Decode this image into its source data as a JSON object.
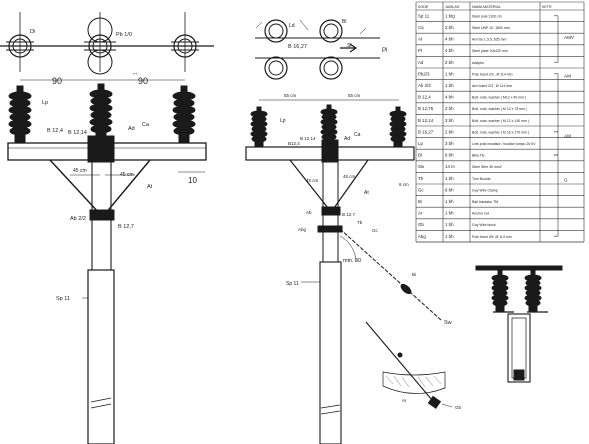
{
  "left_view": {
    "labels": {
      "di": "Di",
      "pb": "Pb 1/0",
      "dim_left": "90",
      "dim_right": "90",
      "dash": "--",
      "lp": "Lp",
      "b124": "B 12,4",
      "b1214": "B 12,14",
      "ad": "Ad",
      "ca": "Ca",
      "dim45a": "45 cm",
      "dim45b": "45 cm",
      "at": "At",
      "dim10": "10",
      "ab": "Ab 2/2",
      "b127": "B 12,7",
      "sp": "Sp 11"
    }
  },
  "middle_view": {
    "labels": {
      "ld": "Ld",
      "bl": "Bl",
      "b1627": "B 16,27",
      "sl": "Sl",
      "pl": "Pl",
      "dim55a": "55 cm",
      "dim55b": "55 cm",
      "lp": "Lp",
      "b124": "B12,4",
      "b1214": "B 12,14",
      "ad": "Ad",
      "ca": "Ca",
      "dim45a": "45 cm",
      "dim45b": "45 cm",
      "dim6": "6 cm",
      "at": "At",
      "ab": "Ab",
      "b127": "B 12,7",
      "tb": "Tb",
      "abg": "Abg",
      "gc": "Gc",
      "min30": "min. 30",
      "sp": "Sp 11",
      "bi": "Bi",
      "sw": "Sw",
      "ar": "Ar",
      "gb": "Gb"
    }
  },
  "table": {
    "header": [
      "KODE",
      "JUMLAH",
      "NAMA MATERIAL",
      "KETR"
    ],
    "rows": [
      [
        "Sp 11",
        "1 btg",
        "Steel pole 1100 cm",
        ""
      ],
      [
        "Ca",
        "2 bh",
        "Steel UNP 10, 1800 mm",
        ""
      ],
      [
        "At",
        "4 bh",
        "Arm tie L.5,5, 625 mm",
        ""
      ],
      [
        "Pl",
        "4 bh",
        "Steel plate 10x420 mm",
        ""
      ],
      [
        "Ad",
        "2 bh",
        "Adaptor",
        ""
      ],
      [
        "Pb2/3",
        "1 bh",
        "Pole band 2/3 , Ø 114 mm",
        ""
      ],
      [
        "Ab 2/3",
        "1 bh",
        "Arm band 2/3 , Ø 114 mm",
        ""
      ],
      [
        "B 12,4",
        "4 bh",
        "Bolt, nuts, washer ( M12 x 40 mm )",
        ""
      ],
      [
        "B 12,75",
        "2 bh",
        "Bolt, nuts, washer ( M 12 x 75 mm )",
        ""
      ],
      [
        "B 12,14",
        "3 bh",
        "Bolt, nuts, washer ( M 12 x 140 mm )",
        ""
      ],
      [
        "B 16,27",
        "2 bh",
        "Bolt, nuts, washer ( M 16 x 270 mm )",
        ""
      ],
      [
        "Lp",
        "3 bh",
        "Line-post insulator / isolator tumpu 20 kV",
        ""
      ],
      [
        "Bl",
        "6 bh",
        "Bika Tie",
        ""
      ],
      [
        "Sw",
        "14 m",
        "Steel Wire 35 mm2",
        ""
      ],
      [
        "Tb",
        "1 bh",
        "Turn Buckle",
        ""
      ],
      [
        "Gc",
        "6 bh",
        "Guy Wire Clamp",
        ""
      ],
      [
        "Bi",
        "1 bh",
        "Ball Insulator TM",
        ""
      ],
      [
        "Ar",
        "1 bh",
        "Anchor rod",
        ""
      ],
      [
        "Gb",
        "1 bh",
        "Guy Wire block",
        ""
      ],
      [
        "Abg",
        "1 bh",
        "Pole band 3/6 ,Ø 114 mm",
        ""
      ]
    ],
    "notes": [
      "AMV",
      "AM",
      "AM",
      "G"
    ]
  }
}
